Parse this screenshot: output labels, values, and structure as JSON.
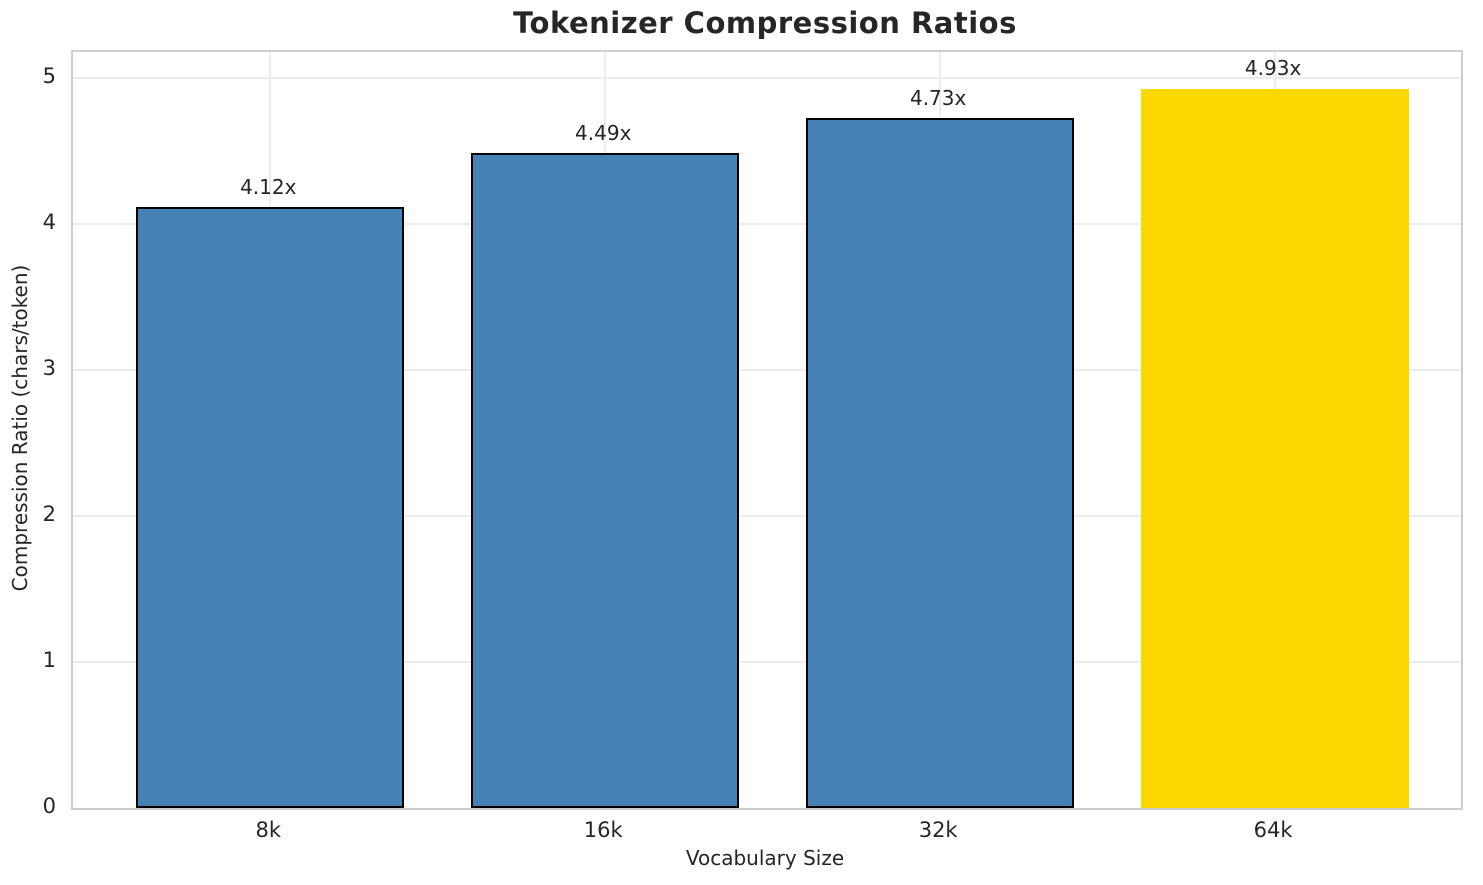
{
  "chart_data": {
    "type": "bar",
    "title": "Tokenizer Compression Ratios",
    "xlabel": "Vocabulary Size",
    "ylabel": "Compression Ratio (chars/token)",
    "categories": [
      "8k",
      "16k",
      "32k",
      "64k"
    ],
    "values": [
      4.12,
      4.49,
      4.73,
      4.93
    ],
    "bar_labels": [
      "4.12x",
      "4.49x",
      "4.73x",
      "4.93x"
    ],
    "yticks": [
      0,
      1,
      2,
      3,
      4,
      5
    ],
    "ylim": [
      0,
      5.18
    ],
    "grid": true,
    "legend": "none",
    "bar_colors": [
      "#4682B4",
      "#4682B4",
      "#4682B4",
      "#FFD700"
    ],
    "bar_edge_colors": [
      "#000000",
      "#000000",
      "#000000",
      "none"
    ],
    "highlight_index": 3
  },
  "colors": {
    "bar_default": "#4682B4",
    "bar_highlight": "#FFD700",
    "bar_edge": "#000000",
    "grid": "#ececec",
    "spine": "#cfcfcf",
    "text": "#262626",
    "background": "#ffffff"
  }
}
